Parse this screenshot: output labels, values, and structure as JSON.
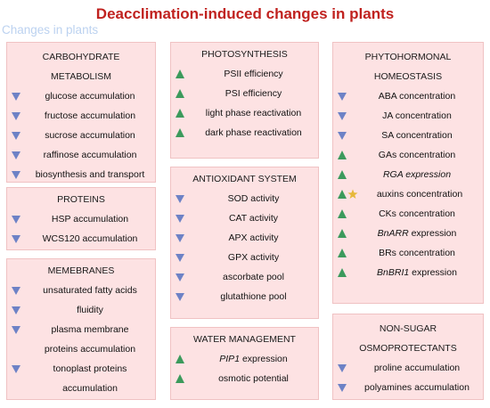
{
  "title": "Deacclimation-induced changes in plants",
  "ghost_text": "Changes in plants",
  "colors": {
    "title": "#c0221f",
    "box_fill": "#fde2e3",
    "box_border": "#f0c2c3",
    "down": "#6d82c6",
    "up": "#3c9a5c",
    "star": "#e7b83a"
  },
  "boxes": {
    "carb": {
      "heading_line1": "CARBOHYDRATE",
      "heading_line2": "METABOLISM",
      "items": [
        {
          "dir": "down",
          "text": "glucose accumulation"
        },
        {
          "dir": "down",
          "text": "fructose accumulation"
        },
        {
          "dir": "down",
          "text": "sucrose accumulation"
        },
        {
          "dir": "down",
          "text": "raffinose accumulation"
        },
        {
          "dir": "down",
          "text": "biosynthesis and transport"
        }
      ]
    },
    "proteins": {
      "heading": "PROTEINS",
      "items": [
        {
          "dir": "down",
          "text": "HSP accumulation"
        },
        {
          "dir": "down",
          "text": "WCS120 accumulation"
        }
      ]
    },
    "membranes": {
      "heading": "MEMEBRANES",
      "items": [
        {
          "dir": "down",
          "text": "unsaturated fatty acids"
        },
        {
          "dir": "down",
          "text": "fluidity"
        },
        {
          "dir": "down",
          "text": "plasma membrane"
        },
        {
          "dir": "none",
          "text": "proteins accumulation"
        },
        {
          "dir": "down",
          "text": "tonoplast proteins"
        },
        {
          "dir": "none",
          "text": "accumulation"
        }
      ]
    },
    "photo": {
      "heading": "PHOTOSYNTHESIS",
      "items": [
        {
          "dir": "up",
          "text": "PSII efficiency"
        },
        {
          "dir": "up",
          "text": "PSI efficiency"
        },
        {
          "dir": "up",
          "text": "light phase reactivation"
        },
        {
          "dir": "up",
          "text": "dark phase reactivation"
        }
      ]
    },
    "antiox": {
      "heading": "ANTIOXIDANT SYSTEM",
      "items": [
        {
          "dir": "down",
          "text": "SOD activity"
        },
        {
          "dir": "down",
          "text": "CAT activity"
        },
        {
          "dir": "down",
          "text": "APX activity"
        },
        {
          "dir": "down",
          "text": "GPX activity"
        },
        {
          "dir": "down",
          "text": "ascorbate pool"
        },
        {
          "dir": "down",
          "text": "glutathione pool"
        }
      ]
    },
    "water": {
      "heading": "WATER MANAGEMENT",
      "items": [
        {
          "dir": "up",
          "text_italic": "PIP1",
          "text_rest": " expression"
        },
        {
          "dir": "up",
          "text": "osmotic potential"
        }
      ]
    },
    "phyto": {
      "heading_line1": "PHYTOHORMONAL",
      "heading_line2": "HOMEOSTASIS",
      "items": [
        {
          "dir": "down",
          "text": "ABA concentration"
        },
        {
          "dir": "down",
          "text": "JA concentration"
        },
        {
          "dir": "down",
          "text": "SA concentration"
        },
        {
          "dir": "up",
          "text": "GAs concentration"
        },
        {
          "dir": "up",
          "text_italic": "RGA expression",
          "text_rest": ""
        },
        {
          "dir": "up-star",
          "text": "auxins concentration"
        },
        {
          "dir": "up",
          "text": "CKs concentration"
        },
        {
          "dir": "up",
          "text_italic": "BnARR",
          "text_rest": " expression"
        },
        {
          "dir": "up",
          "text": "BRs concentration"
        },
        {
          "dir": "up",
          "text_italic": "BnBRI1",
          "text_rest": " expression"
        }
      ]
    },
    "osmo": {
      "heading_line1": "NON-SUGAR",
      "heading_line2": "OSMOPROTECTANTS",
      "items": [
        {
          "dir": "down",
          "text": "proline accumulation"
        },
        {
          "dir": "down",
          "text": "polyamines accumulation"
        }
      ]
    }
  }
}
